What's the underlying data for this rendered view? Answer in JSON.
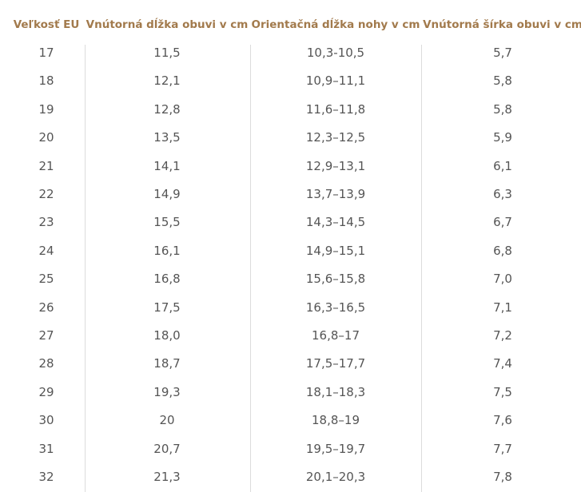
{
  "table": {
    "header": [
      "Veľkosť EU",
      "Vnútorná dĺžka obuvi v cm",
      "Orientačná dĺžka nohy v cm",
      "Vnútorná šírka obuvi v cm"
    ],
    "rows": [
      [
        "17",
        "11,5",
        "10,3-10,5",
        "5,7"
      ],
      [
        "18",
        "12,1",
        "10,9–11,1",
        "5,8"
      ],
      [
        "19",
        "12,8",
        "11,6–11,8",
        "5,8"
      ],
      [
        "20",
        "13,5",
        "12,3–12,5",
        "5,9"
      ],
      [
        "21",
        "14,1",
        "12,9–13,1",
        "6,1"
      ],
      [
        "22",
        "14,9",
        "13,7–13,9",
        "6,3"
      ],
      [
        "23",
        "15,5",
        "14,3–14,5",
        "6,7"
      ],
      [
        "24",
        "16,1",
        "14,9–15,1",
        "6,8"
      ],
      [
        "25",
        "16,8",
        "15,6–15,8",
        "7,0"
      ],
      [
        "26",
        "17,5",
        "16,3–16,5",
        "7,1"
      ],
      [
        "27",
        "18,0",
        "16,8–17",
        "7,2"
      ],
      [
        "28",
        "18,7",
        "17,5–17,7",
        "7,4"
      ],
      [
        "29",
        "19,3",
        "18,1–18,3",
        "7,5"
      ],
      [
        "30",
        "20",
        "18,8–19",
        "7,6"
      ],
      [
        "31",
        "20,7",
        "19,5–19,7",
        "7,7"
      ],
      [
        "32",
        "21,3",
        "20,1–20,3",
        "7,8"
      ]
    ]
  }
}
